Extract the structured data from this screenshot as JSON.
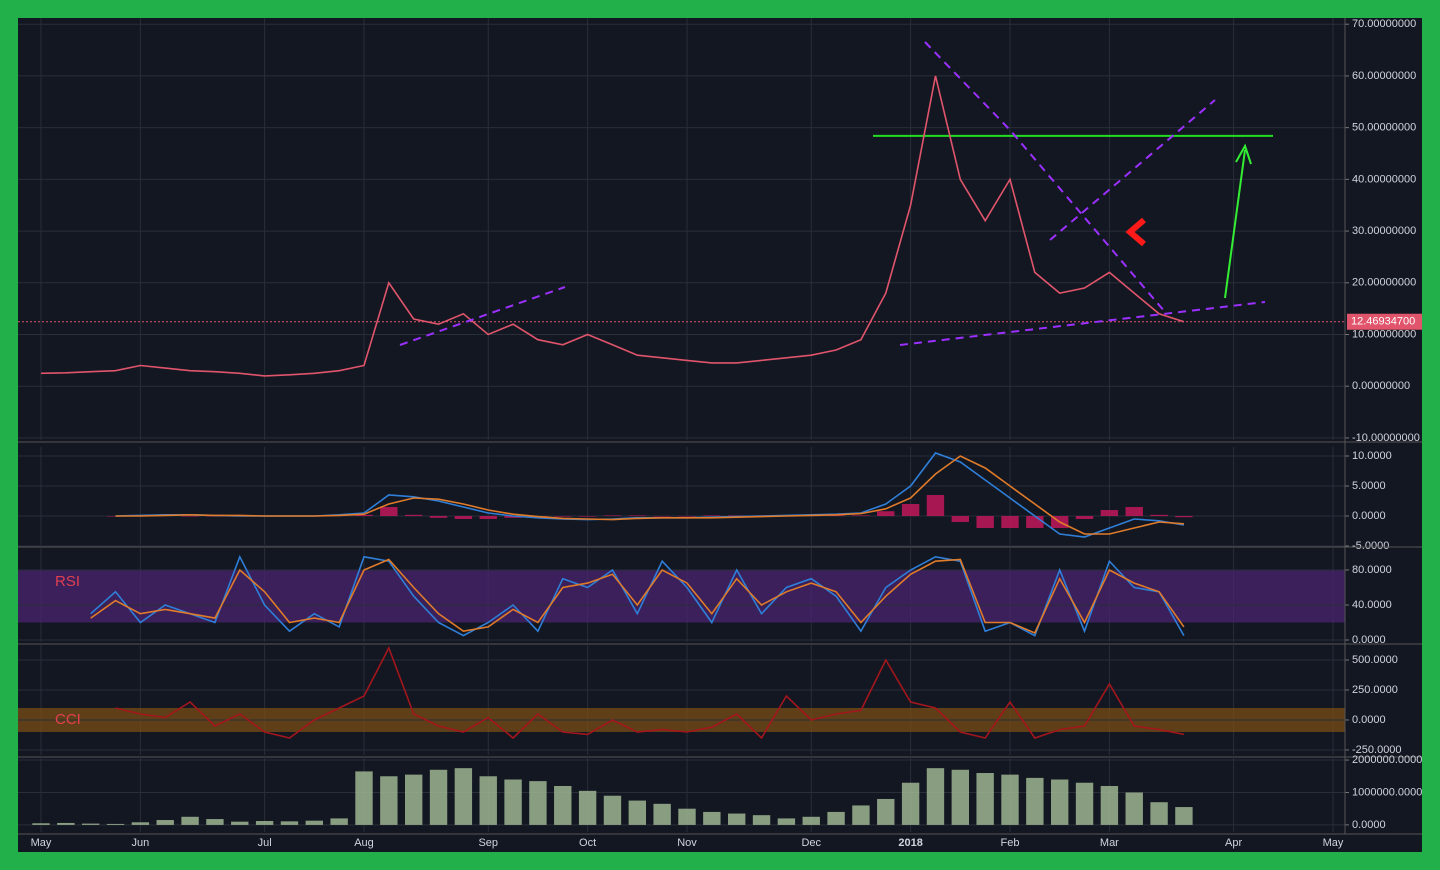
{
  "chart_data": [
    {
      "type": "line",
      "ylim": [
        -10.4,
        71.2
      ],
      "yticks": [
        {
          "value": 70,
          "label": "70.00000000"
        },
        {
          "value": 60,
          "label": "60.00000000"
        },
        {
          "value": 50,
          "label": "50.00000000"
        },
        {
          "value": 40,
          "label": "40.00000000"
        },
        {
          "value": 30,
          "label": "30.00000000"
        },
        {
          "value": 20,
          "label": "20.00000000"
        },
        {
          "value": 10,
          "label": "10.00000000"
        },
        {
          "value": 0,
          "label": "0.00000000"
        },
        {
          "value": -10,
          "label": "-10.00000000"
        }
      ],
      "grid": true,
      "series": [
        {
          "color": "#e0556b",
          "style": "line",
          "values": [
            2.5,
            2.6,
            2.8,
            3,
            4,
            3.5,
            3,
            2.8,
            2.5,
            2,
            2.2,
            2.5,
            3,
            4,
            20,
            13,
            12,
            14,
            10,
            12,
            9,
            8,
            10,
            8,
            6,
            5.5,
            5,
            4.5,
            4.5,
            5,
            5.5,
            6,
            7,
            9,
            18,
            35,
            60,
            40,
            32,
            40,
            22,
            18,
            19,
            22,
            18,
            14,
            12.469347,
            null,
            null,
            null,
            null,
            null,
            null
          ]
        }
      ],
      "hline": {
        "value": 48.4,
        "color": "#22dd22"
      },
      "last_price": {
        "value": 12.469347,
        "label": "12.46934700",
        "color": "#e0556b"
      }
    },
    {
      "type": "line",
      "ylim": [
        -4.83,
        11.5
      ],
      "yticks": [
        {
          "value": 10,
          "label": "10.0000"
        },
        {
          "value": 5,
          "label": "5.0000"
        },
        {
          "value": 0,
          "label": "0.0000"
        },
        {
          "value": -5,
          "label": "-5.0000"
        }
      ],
      "grid": true,
      "series": [
        {
          "color": "#c2185b",
          "style": "bar",
          "values": [
            null,
            null,
            null,
            0,
            0.1,
            0.1,
            0,
            0,
            -0.1,
            0,
            0,
            0,
            0.1,
            0.2,
            1.5,
            0.2,
            -0.3,
            -0.5,
            -0.5,
            -0.3,
            -0.2,
            -0.1,
            -0.1,
            0.1,
            0.1,
            0,
            0,
            0.1,
            0.1,
            0.1,
            0.1,
            0.1,
            0.1,
            0.1,
            0.8,
            2,
            3.5,
            -1,
            -2,
            -2,
            -2,
            -2,
            -0.5,
            1,
            1.5,
            0.2,
            -0.2,
            null,
            null,
            null,
            null,
            null,
            null
          ]
        },
        {
          "color": "#2f7fd8",
          "style": "line",
          "values": [
            null,
            null,
            null,
            0,
            0.1,
            0.2,
            0.2,
            0.1,
            0,
            0,
            0,
            0,
            0.2,
            0.5,
            3.5,
            3.2,
            2.5,
            1.5,
            0.5,
            0,
            -0.3,
            -0.5,
            -0.6,
            -0.5,
            -0.3,
            -0.3,
            -0.3,
            -0.2,
            -0.1,
            0,
            0.1,
            0.2,
            0.3,
            0.5,
            2,
            5,
            10.5,
            9,
            6,
            3,
            0,
            -3,
            -3.5,
            -2,
            -0.5,
            -0.8,
            -1.5,
            null,
            null,
            null,
            null,
            null,
            null
          ]
        },
        {
          "color": "#e07b2a",
          "style": "line",
          "values": [
            null,
            null,
            null,
            0,
            0,
            0.1,
            0.2,
            0.1,
            0.1,
            0,
            0,
            0,
            0.1,
            0.3,
            2,
            3,
            2.8,
            2,
            1,
            0.3,
            -0.1,
            -0.4,
            -0.5,
            -0.6,
            -0.4,
            -0.3,
            -0.3,
            -0.3,
            -0.2,
            -0.1,
            0,
            0.1,
            0.2,
            0.4,
            1.2,
            3,
            7,
            10,
            8,
            5,
            2,
            -1,
            -3,
            -3,
            -2,
            -1,
            -1.3,
            null,
            null,
            null,
            null,
            null,
            null
          ]
        }
      ]
    },
    {
      "type": "line",
      "label": "RSI",
      "ylim": [
        -2.3,
        105.1
      ],
      "yticks": [
        {
          "value": 80,
          "label": "80.0000"
        },
        {
          "value": 40,
          "label": "40.0000"
        },
        {
          "value": 0,
          "label": "0.0000"
        }
      ],
      "grid": true,
      "band": [
        20,
        80
      ],
      "band_color": "#4a2470",
      "series": [
        {
          "color": "#2f7fd8",
          "style": "line",
          "values": [
            null,
            null,
            30,
            55,
            20,
            40,
            30,
            20,
            95,
            40,
            10,
            30,
            15,
            95,
            90,
            50,
            20,
            5,
            20,
            40,
            10,
            70,
            60,
            80,
            30,
            90,
            60,
            20,
            80,
            30,
            60,
            70,
            50,
            10,
            60,
            80,
            95,
            90,
            10,
            20,
            5,
            80,
            10,
            90,
            60,
            55,
            5,
            null,
            null,
            null,
            null,
            null,
            null
          ]
        },
        {
          "color": "#e07b2a",
          "style": "line",
          "values": [
            null,
            null,
            25,
            45,
            30,
            35,
            30,
            25,
            80,
            55,
            20,
            25,
            20,
            80,
            92,
            60,
            30,
            10,
            15,
            35,
            20,
            60,
            65,
            75,
            40,
            80,
            65,
            30,
            70,
            40,
            55,
            65,
            55,
            20,
            50,
            75,
            90,
            92,
            20,
            20,
            8,
            70,
            20,
            80,
            65,
            55,
            15,
            null,
            null,
            null,
            null,
            null,
            null
          ]
        }
      ]
    },
    {
      "type": "line",
      "label": "CCI",
      "ylim": [
        -292,
        625
      ],
      "yticks": [
        {
          "value": 500,
          "label": "500.0000"
        },
        {
          "value": 250,
          "label": "250.0000"
        },
        {
          "value": 0,
          "label": "0.0000"
        },
        {
          "value": -250,
          "label": "-250.0000"
        }
      ],
      "grid": true,
      "band": [
        -100,
        100
      ],
      "band_color": "#7a4d14",
      "series": [
        {
          "color": "#a3161c",
          "style": "line",
          "values": [
            null,
            null,
            null,
            100,
            50,
            20,
            150,
            -50,
            50,
            -100,
            -150,
            0,
            100,
            200,
            600,
            50,
            -50,
            -100,
            20,
            -150,
            50,
            -100,
            -120,
            0,
            -100,
            -80,
            -100,
            -60,
            50,
            -150,
            200,
            0,
            50,
            80,
            500,
            150,
            100,
            -100,
            -150,
            150,
            -150,
            -80,
            -50,
            300,
            -50,
            -80,
            -120,
            null,
            null,
            null,
            null,
            null,
            null
          ]
        }
      ]
    },
    {
      "type": "bar",
      "ylim": [
        -219000,
        2094000
      ],
      "yticks": [
        {
          "value": 2000000,
          "label": "2000000.0000"
        },
        {
          "value": 1000000,
          "label": "1000000.0000"
        },
        {
          "value": 0,
          "label": "0.0000"
        }
      ],
      "grid": true,
      "categories": [
        "May",
        null,
        null,
        null,
        "Jun",
        null,
        null,
        null,
        null,
        "Jul",
        null,
        null,
        null,
        "Aug",
        null,
        null,
        null,
        null,
        "Sep",
        null,
        null,
        null,
        "Oct",
        null,
        null,
        null,
        "Nov",
        null,
        null,
        null,
        null,
        "Dec",
        null,
        null,
        null,
        "2018",
        null,
        null,
        null,
        "Feb",
        null,
        null,
        null,
        "Mar",
        null,
        null,
        null,
        null,
        "Apr",
        null,
        null,
        null,
        "May"
      ],
      "series": [
        {
          "color": "#9fb592",
          "style": "bar",
          "values": [
            50000,
            60000,
            40000,
            30000,
            80000,
            150000,
            250000,
            180000,
            100000,
            120000,
            110000,
            130000,
            200000,
            1650000,
            1500000,
            1550000,
            1700000,
            1750000,
            1500000,
            1400000,
            1350000,
            1200000,
            1050000,
            900000,
            750000,
            650000,
            500000,
            400000,
            350000,
            300000,
            200000,
            250000,
            400000,
            600000,
            800000,
            1300000,
            1750000,
            1700000,
            1600000,
            1550000,
            1450000,
            1400000,
            1300000,
            1200000,
            1000000,
            700000,
            550000,
            null,
            null,
            null,
            null,
            null,
            null
          ]
        }
      ]
    }
  ]
}
